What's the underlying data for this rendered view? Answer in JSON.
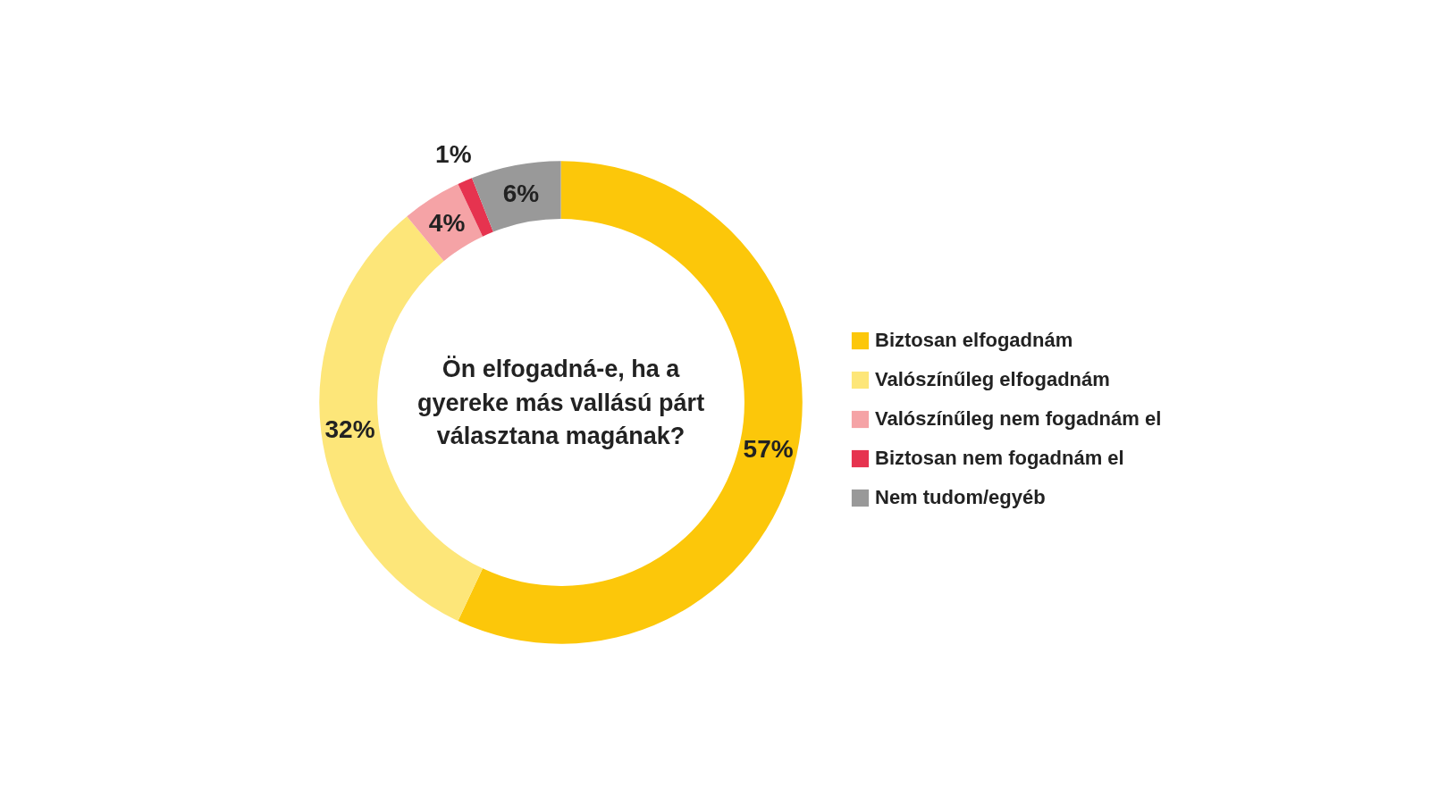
{
  "chart_data": {
    "type": "donut",
    "title": "Ön elfogadná-e, ha a gyereke más vallású párt választana magának?",
    "categories": [
      "Biztosan elfogadnám",
      "Valószínűleg elfogadnám",
      "Valószínűleg nem fogadnám el",
      "Biztosan nem fogadnám el",
      "Nem tudom/egyéb"
    ],
    "values": [
      57,
      32,
      4,
      1,
      6
    ],
    "colors": [
      "#fcc70a",
      "#fde679",
      "#f5a3a6",
      "#e6334f",
      "#999999"
    ],
    "value_labels": [
      "57%",
      "32%",
      "4%",
      "1%",
      "6%"
    ],
    "legend": "right"
  }
}
